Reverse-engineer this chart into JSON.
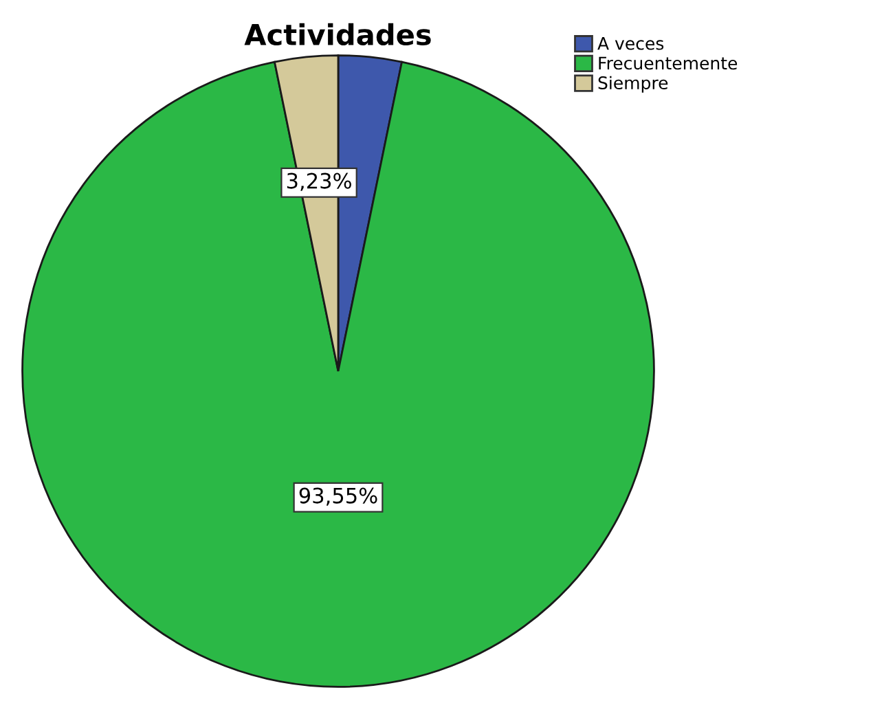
{
  "chart_data": {
    "type": "pie",
    "title": "Actividades",
    "categories": [
      "A veces",
      "Frecuentemente",
      "Siempre"
    ],
    "values": [
      3.23,
      93.55,
      3.23
    ],
    "colors": [
      "#3e58ac",
      "#2bb846",
      "#d4c99a"
    ],
    "value_labels": [
      null,
      "93,55%",
      "3,23%"
    ],
    "legend": "top right"
  }
}
